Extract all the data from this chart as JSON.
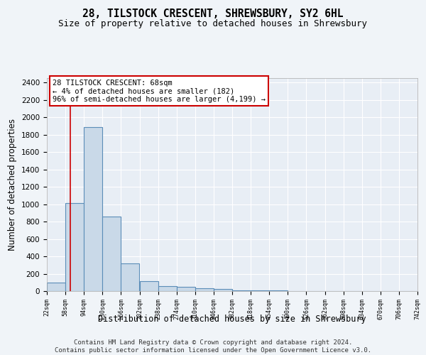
{
  "title": "28, TILSTOCK CRESCENT, SHREWSBURY, SY2 6HL",
  "subtitle": "Size of property relative to detached houses in Shrewsbury",
  "xlabel": "Distribution of detached houses by size in Shrewsbury",
  "ylabel": "Number of detached properties",
  "footer_line1": "Contains HM Land Registry data © Crown copyright and database right 2024.",
  "footer_line2": "Contains public sector information licensed under the Open Government Licence v3.0.",
  "bar_edges": [
    22,
    58,
    94,
    130,
    166,
    202,
    238,
    274,
    310,
    346,
    382,
    418,
    454,
    490,
    526,
    562,
    598,
    634,
    670,
    706,
    742
  ],
  "bar_heights": [
    94,
    1010,
    1890,
    860,
    315,
    115,
    60,
    50,
    35,
    25,
    10,
    8,
    5,
    3,
    2,
    1,
    1,
    0,
    0,
    0
  ],
  "bar_color": "#c9d9e8",
  "bar_edge_color": "#5b8db8",
  "bar_linewidth": 0.8,
  "property_size": 68,
  "red_line_color": "#cc0000",
  "annotation_text_line1": "28 TILSTOCK CRESCENT: 68sqm",
  "annotation_text_line2": "← 4% of detached houses are smaller (182)",
  "annotation_text_line3": "96% of semi-detached houses are larger (4,199) →",
  "annotation_box_color": "#cc0000",
  "ylim": [
    0,
    2450
  ],
  "xlim": [
    22,
    742
  ],
  "background_color": "#f0f4f8",
  "plot_bg_color": "#e8eef5",
  "grid_color": "#ffffff",
  "title_fontsize": 10.5,
  "subtitle_fontsize": 9,
  "xlabel_fontsize": 8.5,
  "ylabel_fontsize": 8.5,
  "annotation_fontsize": 7.5,
  "footer_fontsize": 6.5,
  "yticks": [
    0,
    200,
    400,
    600,
    800,
    1000,
    1200,
    1400,
    1600,
    1800,
    2000,
    2200,
    2400
  ]
}
